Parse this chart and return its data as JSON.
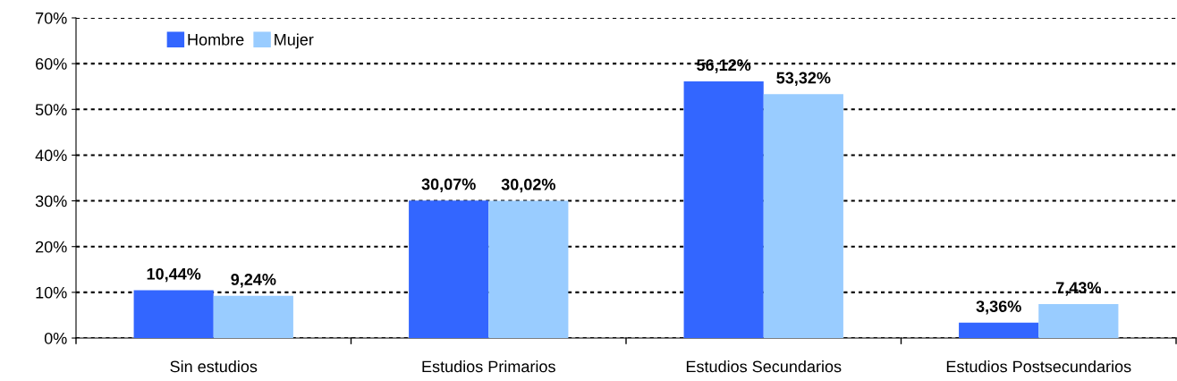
{
  "chart_data": {
    "type": "bar",
    "categories": [
      "Sin estudios",
      "Estudios Primarios",
      "Estudios Secundarios",
      "Estudios Postsecundarios"
    ],
    "series": [
      {
        "name": "Hombre",
        "color": "#3366ff",
        "values": [
          10.44,
          30.07,
          56.12,
          3.36
        ],
        "value_labels": [
          "10,44%",
          "30,07%",
          "56,12%",
          "3,36%"
        ]
      },
      {
        "name": "Mujer",
        "color": "#99ccff",
        "values": [
          9.24,
          30.02,
          53.32,
          7.43
        ],
        "value_labels": [
          "9,24%",
          "30,02%",
          "53,32%",
          "7,43%"
        ]
      }
    ],
    "ylim": [
      0,
      70
    ],
    "yticks": [
      {
        "value": 0,
        "label": "0%"
      },
      {
        "value": 10,
        "label": "10%"
      },
      {
        "value": 20,
        "label": "20%"
      },
      {
        "value": 30,
        "label": "30%"
      },
      {
        "value": 40,
        "label": "40%"
      },
      {
        "value": 50,
        "label": "50%"
      },
      {
        "value": 60,
        "label": "60%"
      },
      {
        "value": 70,
        "label": "70%"
      }
    ],
    "grid": "y",
    "legend": "top left"
  }
}
